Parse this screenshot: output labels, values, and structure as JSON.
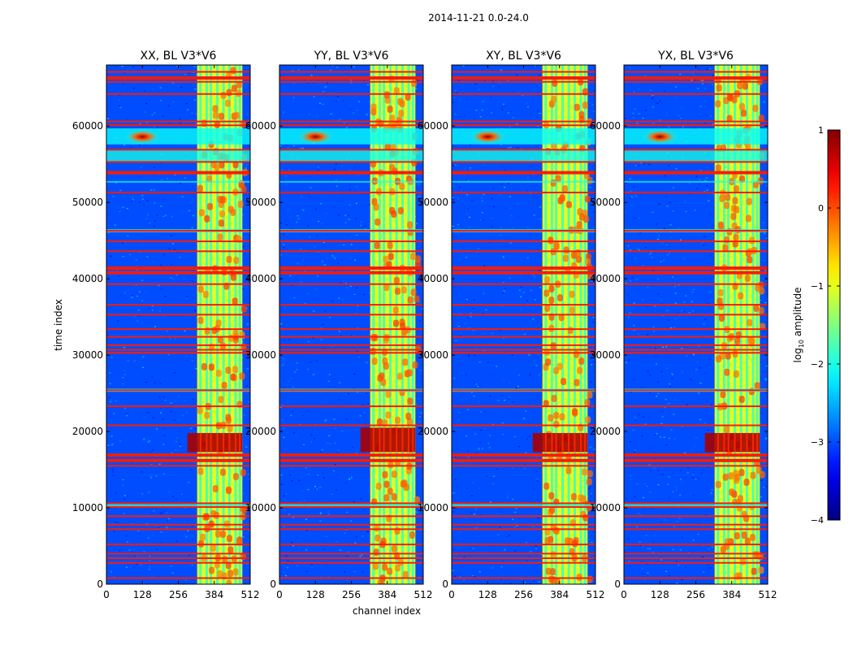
{
  "chart_data": {
    "type": "heatmap",
    "suptitle": "2014-11-21 0.0-24.0",
    "xlabel": "channel index",
    "ylabel": "time index",
    "xlim": [
      0,
      512
    ],
    "ylim": [
      0,
      68000
    ],
    "xticks": [
      0,
      128,
      256,
      384,
      512
    ],
    "yticks": [
      0,
      10000,
      20000,
      30000,
      40000,
      50000,
      60000
    ],
    "panels": [
      {
        "title": "XX, BL V3*V6",
        "band_start": 323,
        "band_end": 484,
        "bright_streak": [
          17300,
          19800
        ]
      },
      {
        "title": "YY, BL V3*V6",
        "band_start": 323,
        "band_end": 484,
        "bright_streak": [
          17300,
          20500
        ]
      },
      {
        "title": "XY, BL V3*V6",
        "band_start": 323,
        "band_end": 484,
        "bright_streak": [
          17300,
          19800
        ]
      },
      {
        "title": "YX, BL V3*V6",
        "band_start": 323,
        "band_end": 484,
        "bright_streak": [
          17300,
          19800
        ]
      }
    ],
    "band_columns": [
      335,
      357,
      372,
      395,
      417,
      438,
      460,
      475
    ],
    "flag_rows": [
      800,
      2800,
      3400,
      4000,
      5200,
      7200,
      7800,
      8900,
      10100,
      10600,
      15500,
      16200,
      16900,
      20800,
      23300,
      25400,
      30300,
      30700,
      31300,
      32400,
      33400,
      35300,
      36600,
      39300,
      40800,
      41400,
      43600,
      44900,
      46300,
      51300,
      53900,
      55300,
      56900,
      60100,
      60600,
      64200,
      65800,
      66300,
      67100
    ],
    "rfi_burst": {
      "channel": 128,
      "time": 58600,
      "channel_range": [
        0,
        512
      ],
      "time_range": [
        57600,
        59700
      ]
    },
    "colorbar": {
      "label": "log",
      "label_sub": "10",
      "label_rest": " amplitude",
      "min": -4,
      "max": 1,
      "ticks": [
        "1",
        "0",
        "−1",
        "−2",
        "−3",
        "−4"
      ],
      "tick_values": [
        1,
        0,
        -1,
        -2,
        -3,
        -4
      ],
      "colormap": "jet"
    }
  }
}
